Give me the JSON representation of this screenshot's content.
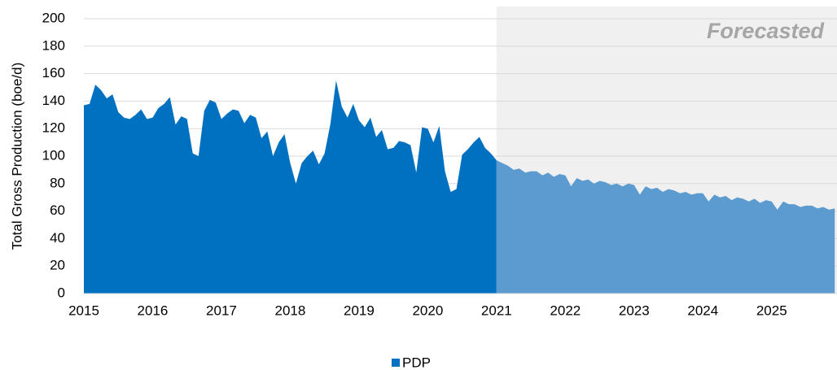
{
  "chart_data": {
    "type": "area",
    "y_axis_label": "Total Gross Production (boe/d)",
    "xlim": [
      2015,
      2025.95
    ],
    "xticks": [
      2015,
      2016,
      2017,
      2018,
      2019,
      2020,
      2021,
      2022,
      2023,
      2024,
      2025
    ],
    "ylim": [
      0,
      200
    ],
    "yticks": [
      0,
      20,
      40,
      60,
      80,
      100,
      120,
      140,
      160,
      180,
      200
    ],
    "grid": true,
    "legend": "bottom",
    "forecast": {
      "label": "Forecasted",
      "start": 2021,
      "color": "#5b9bd0",
      "background": "#f0f0f0"
    },
    "x": [
      2015,
      2015.083,
      2015.167,
      2015.25,
      2015.333,
      2015.417,
      2015.5,
      2015.583,
      2015.667,
      2015.75,
      2015.833,
      2015.917,
      2016,
      2016.083,
      2016.167,
      2016.25,
      2016.333,
      2016.417,
      2016.5,
      2016.583,
      2016.667,
      2016.75,
      2016.833,
      2016.917,
      2017,
      2017.083,
      2017.167,
      2017.25,
      2017.333,
      2017.417,
      2017.5,
      2017.583,
      2017.667,
      2017.75,
      2017.833,
      2017.917,
      2018,
      2018.083,
      2018.167,
      2018.25,
      2018.333,
      2018.417,
      2018.5,
      2018.583,
      2018.667,
      2018.75,
      2018.833,
      2018.917,
      2019,
      2019.083,
      2019.167,
      2019.25,
      2019.333,
      2019.417,
      2019.5,
      2019.583,
      2019.667,
      2019.75,
      2019.833,
      2019.917,
      2020,
      2020.083,
      2020.167,
      2020.25,
      2020.333,
      2020.417,
      2020.5,
      2020.583,
      2020.667,
      2020.75,
      2020.833,
      2020.917,
      2021,
      2021.083,
      2021.167,
      2021.25,
      2021.333,
      2021.417,
      2021.5,
      2021.583,
      2021.667,
      2021.75,
      2021.833,
      2021.917,
      2022,
      2022.083,
      2022.167,
      2022.25,
      2022.333,
      2022.417,
      2022.5,
      2022.583,
      2022.667,
      2022.75,
      2022.833,
      2022.917,
      2023,
      2023.083,
      2023.167,
      2023.25,
      2023.333,
      2023.417,
      2023.5,
      2023.583,
      2023.667,
      2023.75,
      2023.833,
      2023.917,
      2024,
      2024.083,
      2024.167,
      2024.25,
      2024.333,
      2024.417,
      2024.5,
      2024.583,
      2024.667,
      2024.75,
      2024.833,
      2024.917,
      2025,
      2025.083,
      2025.167,
      2025.25,
      2025.333,
      2025.417,
      2025.5,
      2025.583,
      2025.667,
      2025.75,
      2025.833,
      2025.917
    ],
    "series": [
      {
        "name": "PDP",
        "color": "#0070c0",
        "values": [
          137,
          138,
          152,
          148,
          142,
          145,
          132,
          128,
          127,
          130,
          134,
          127,
          128,
          135,
          138,
          143,
          123,
          129,
          127,
          102,
          100,
          133,
          141,
          139,
          127,
          131,
          134,
          133,
          124,
          130,
          128,
          113,
          118,
          100,
          110,
          116,
          95,
          80,
          95,
          100,
          104,
          94,
          102,
          123,
          155,
          136,
          128,
          138,
          126,
          121,
          128,
          114,
          119,
          105,
          106,
          111,
          110,
          108,
          88,
          121,
          120,
          110,
          122,
          89,
          74,
          76,
          101,
          105,
          110,
          114,
          106,
          102,
          97,
          95,
          93,
          90,
          91,
          88,
          89,
          89,
          86,
          88,
          85,
          87,
          86,
          78,
          84,
          82,
          83,
          80,
          82,
          81,
          79,
          80,
          78,
          80,
          79,
          72,
          78,
          76,
          77,
          74,
          76,
          75,
          73,
          74,
          72,
          73,
          73,
          67,
          72,
          70,
          71,
          68,
          70,
          69,
          67,
          69,
          66,
          68,
          67,
          61,
          67,
          65,
          65,
          63,
          64,
          64,
          62,
          63,
          61,
          62
        ]
      }
    ]
  }
}
